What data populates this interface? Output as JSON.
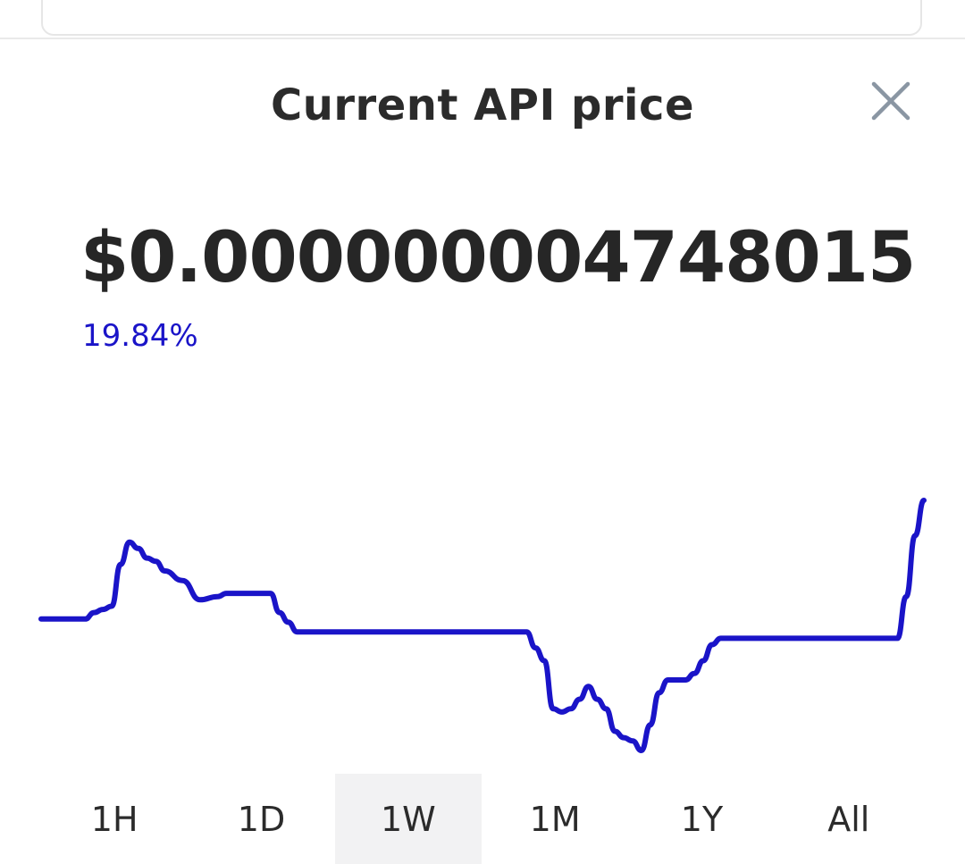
{
  "header": {
    "title": "Current API price",
    "close_icon": "close-icon"
  },
  "price": {
    "value": "$0.000000004748015",
    "change": "19.84%",
    "change_color": "#1a14c8"
  },
  "range_tabs": [
    {
      "label": "1H",
      "active": false
    },
    {
      "label": "1D",
      "active": false
    },
    {
      "label": "1W",
      "active": true
    },
    {
      "label": "1M",
      "active": false
    },
    {
      "label": "1Y",
      "active": false
    },
    {
      "label": "All",
      "active": false
    }
  ],
  "chart_data": {
    "type": "line",
    "line_color": "#1a14c8",
    "grid": false,
    "x": [
      0,
      5,
      6,
      7,
      8,
      9,
      10,
      11,
      12,
      13,
      14,
      16,
      18,
      20,
      21,
      22,
      23,
      24,
      25,
      26,
      27,
      28,
      29,
      30,
      31,
      32,
      33,
      34,
      35,
      36,
      37,
      38,
      40,
      42,
      44,
      46,
      47,
      48,
      49,
      50,
      51,
      52,
      53,
      54,
      55,
      56,
      57,
      58,
      59,
      60,
      61,
      62,
      63,
      64,
      65,
      66,
      67,
      68,
      69,
      70,
      71,
      72,
      73,
      74,
      75,
      76,
      77,
      78,
      79,
      80,
      82,
      84,
      86,
      88,
      90,
      92,
      94,
      96,
      97,
      98,
      99,
      100
    ],
    "y": [
      4.58,
      4.58,
      4.6,
      4.61,
      4.62,
      4.75,
      4.82,
      4.8,
      4.77,
      4.76,
      4.73,
      4.7,
      4.64,
      4.65,
      4.66,
      4.66,
      4.66,
      4.66,
      4.66,
      4.66,
      4.6,
      4.57,
      4.54,
      4.54,
      4.54,
      4.54,
      4.54,
      4.54,
      4.54,
      4.54,
      4.54,
      4.54,
      4.54,
      4.54,
      4.54,
      4.54,
      4.54,
      4.54,
      4.54,
      4.54,
      4.54,
      4.54,
      4.54,
      4.54,
      4.54,
      4.49,
      4.45,
      4.3,
      4.29,
      4.3,
      4.33,
      4.37,
      4.33,
      4.3,
      4.23,
      4.21,
      4.2,
      4.17,
      4.25,
      4.35,
      4.39,
      4.39,
      4.39,
      4.41,
      4.45,
      4.5,
      4.52,
      4.52,
      4.52,
      4.52,
      4.52,
      4.52,
      4.52,
      4.52,
      4.52,
      4.52,
      4.52,
      4.52,
      4.52,
      4.65,
      4.84,
      4.95
    ]
  }
}
